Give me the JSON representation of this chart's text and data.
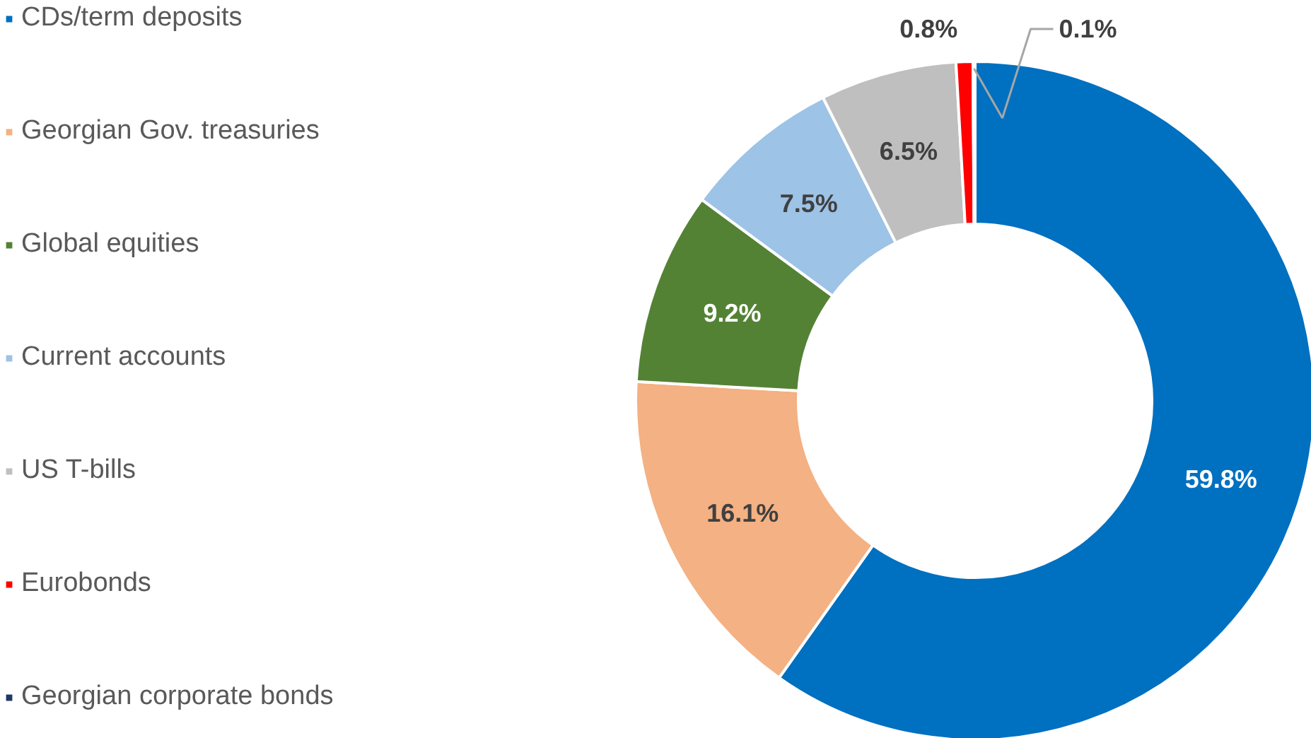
{
  "chart_data": {
    "type": "donut",
    "categories": [
      "CDs/term deposits",
      "Georgian Gov. treasuries",
      "Global equities",
      "Current accounts",
      "US T-bills",
      "Eurobonds",
      "Georgian corporate bonds"
    ],
    "values": [
      59.8,
      16.1,
      9.2,
      7.5,
      6.5,
      0.8,
      0.1
    ],
    "colors": [
      "#0070c0",
      "#f4b183",
      "#548235",
      "#9dc3e6",
      "#bfbfbf",
      "#ff0000",
      "#1f3864"
    ],
    "value_labels": [
      "59.8%",
      "16.1%",
      "9.2%",
      "7.5%",
      "6.5%",
      "0.8%",
      "0.1%"
    ],
    "legend": "left"
  }
}
